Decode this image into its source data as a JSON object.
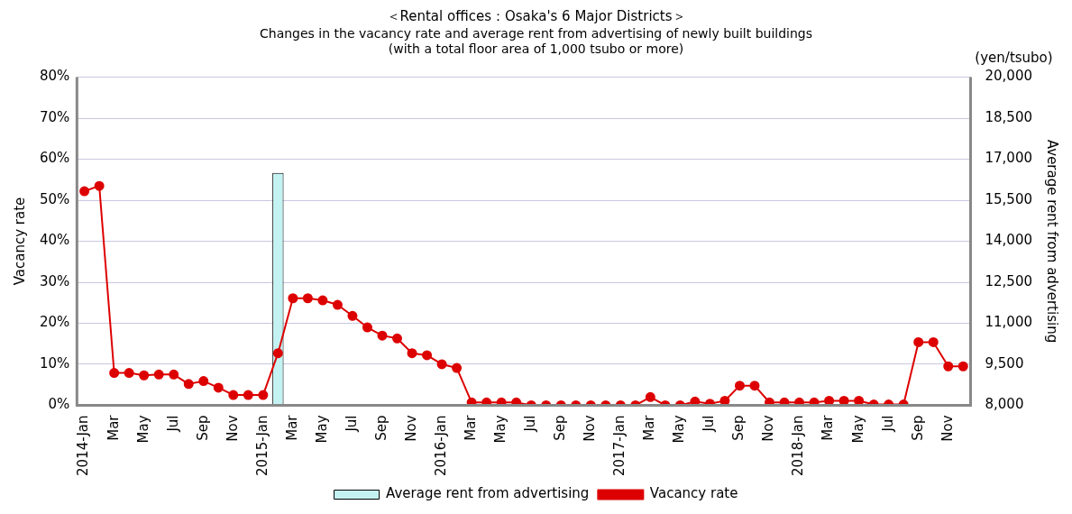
{
  "chart_data": {
    "type": "bar",
    "title": "＜Rental offices：Osaka's 6 Major Districts＞",
    "subtitle": "Changes in the vacancy rate and average rent from advertising of newly built buildings\n(with a total floor area of 1,000 tsubo or more)",
    "ylabel": "Vacancy rate",
    "y2label": "Average rent from advertising",
    "annotations": [
      "(yen/tsubo)"
    ],
    "categories": [
      "2014-Jan",
      null,
      "Mar",
      null,
      "May",
      null,
      "Jul",
      null,
      "Sep",
      null,
      "Nov",
      null,
      "2015-Jan",
      null,
      "Mar",
      null,
      "May",
      null,
      "Jul",
      null,
      "Sep",
      null,
      "Nov",
      null,
      "2016-Jan",
      null,
      "Mar",
      null,
      "May",
      null,
      "Jul",
      null,
      "Sep",
      null,
      "Nov",
      null,
      "2017-Jan",
      null,
      "Mar",
      null,
      "May",
      null,
      "Jul",
      null,
      "Sep",
      null,
      "Nov",
      null,
      "2018-Jan",
      null,
      "Mar",
      null,
      "May",
      null,
      "Jul",
      null,
      "Sep",
      null,
      "Nov",
      null
    ],
    "series": [
      {
        "name": "Average rent from advertising",
        "type": "bar",
        "axis": "y2",
        "color": "#c4f2f2",
        "values": [
          null,
          null,
          null,
          null,
          null,
          null,
          null,
          null,
          null,
          null,
          null,
          null,
          null,
          16500,
          null,
          null,
          null,
          null,
          null,
          null,
          null,
          null,
          null,
          null,
          null,
          null,
          null,
          null,
          null,
          null,
          null,
          null,
          null,
          null,
          null,
          null,
          null,
          null,
          null,
          null,
          null,
          null,
          null,
          null,
          null,
          null,
          null,
          null,
          null,
          null,
          null,
          null,
          null,
          null,
          null,
          null,
          null,
          null,
          null,
          null
        ]
      },
      {
        "name": "Vacancy rate",
        "type": "line",
        "color": "#dd0000",
        "values": [
          52.2,
          53.5,
          7.9,
          7.9,
          7.3,
          7.5,
          7.5,
          5.2,
          5.9,
          4.3,
          2.5,
          2.5,
          2.5,
          12.7,
          26.1,
          26.1,
          25.6,
          24.5,
          21.8,
          19.0,
          17.0,
          16.3,
          12.7,
          12.2,
          10.0,
          9.1,
          0.7,
          0.7,
          0.7,
          0.7,
          0,
          0,
          0,
          0,
          0,
          0,
          0,
          0,
          2.0,
          0,
          0,
          0.9,
          0.4,
          1.1,
          4.8,
          4.8,
          0.7,
          0.7,
          0.7,
          0.7,
          1.1,
          1.1,
          1.1,
          0.2,
          0.2,
          0.2,
          15.4,
          15.4,
          9.5,
          9.5
        ]
      }
    ],
    "ylim": [
      0,
      80
    ],
    "yticks": [
      {
        "value": 0,
        "label": "0%"
      },
      {
        "value": 10,
        "label": "10%"
      },
      {
        "value": 20,
        "label": "20%"
      },
      {
        "value": 30,
        "label": "30%"
      },
      {
        "value": 40,
        "label": "40%"
      },
      {
        "value": 50,
        "label": "50%"
      },
      {
        "value": 60,
        "label": "60%"
      },
      {
        "value": 70,
        "label": "70%"
      },
      {
        "value": 80,
        "label": "80%"
      }
    ],
    "y2lim": [
      8000,
      20000
    ],
    "y2ticks": [
      {
        "value": 8000,
        "label": "8,000"
      },
      {
        "value": 9500,
        "label": "9,500"
      },
      {
        "value": 11000,
        "label": "11,000"
      },
      {
        "value": 12500,
        "label": "12,500"
      },
      {
        "value": 14000,
        "label": "14,000"
      },
      {
        "value": 15500,
        "label": "15,500"
      },
      {
        "value": 17000,
        "label": "17,000"
      },
      {
        "value": 18500,
        "label": "18,500"
      },
      {
        "value": 20000,
        "label": "20,000"
      }
    ],
    "grid": "y",
    "legend": "bottom",
    "marker": "circle",
    "line_style": "solid"
  }
}
